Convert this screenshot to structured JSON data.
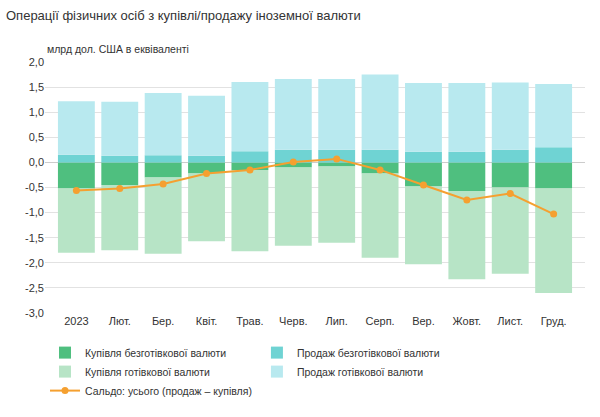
{
  "chart_data": {
    "type": "bar",
    "stacked": true,
    "title": "Операції фізичних осіб з купівлі/продажу іноземної валюти",
    "ylabel": "млрд дол. США в еквіваленті",
    "categories": [
      "2023",
      "Лют.",
      "Бер.",
      "Квіт.",
      "Трав.",
      "Черв.",
      "Лип.",
      "Серп.",
      "Вер.",
      "Жовт.",
      "Лист.",
      "Груд."
    ],
    "series": [
      {
        "name": "Купівля безготівкової валюти",
        "type": "bar",
        "color": "#4fbf7f",
        "values": [
          -0.52,
          -0.45,
          -0.3,
          -0.22,
          -0.15,
          -0.1,
          -0.08,
          -0.22,
          -0.48,
          -0.57,
          -0.5,
          -0.52
        ]
      },
      {
        "name": "Продаж безготівкової валюти",
        "type": "bar",
        "color": "#6fd3d3",
        "values": [
          0.15,
          0.13,
          0.14,
          0.13,
          0.22,
          0.25,
          0.25,
          0.25,
          0.21,
          0.21,
          0.25,
          0.3
        ]
      },
      {
        "name": "Купівля готівкової валюти",
        "type": "bar",
        "color": "#b7e4c6",
        "values": [
          -1.28,
          -1.3,
          -1.52,
          -1.35,
          -1.62,
          -1.56,
          -1.52,
          -1.68,
          -1.55,
          -1.76,
          -1.72,
          -2.08
        ]
      },
      {
        "name": "Продаж готівкової валюти",
        "type": "bar",
        "color": "#b8e9ef",
        "values": [
          1.07,
          1.08,
          1.24,
          1.2,
          1.38,
          1.41,
          1.41,
          1.5,
          1.37,
          1.37,
          1.34,
          1.26
        ]
      },
      {
        "name": "Сальдо: усього (продаж – купівля)",
        "type": "line",
        "color": "#f5a030",
        "marker": "circle",
        "values": [
          -0.56,
          -0.52,
          -0.43,
          -0.22,
          -0.15,
          0.01,
          0.07,
          -0.15,
          -0.45,
          -0.75,
          -0.62,
          -1.03
        ]
      }
    ],
    "ylim": [
      -3.0,
      2.0
    ],
    "yticks": [
      {
        "value": -3.0,
        "label": "-3,0"
      },
      {
        "value": -2.5,
        "label": "-2,5"
      },
      {
        "value": -2.0,
        "label": "-2,0"
      },
      {
        "value": -1.5,
        "label": "-1,5"
      },
      {
        "value": -1.0,
        "label": "-1,0"
      },
      {
        "value": -0.5,
        "label": "-0,5"
      },
      {
        "value": 0.0,
        "label": "0,0"
      },
      {
        "value": 0.5,
        "label": "0,5"
      },
      {
        "value": 1.0,
        "label": "1,0"
      },
      {
        "value": 1.5,
        "label": "1,5"
      },
      {
        "value": 2.0,
        "label": "2,0"
      }
    ],
    "grid": true,
    "legend": "bottom"
  }
}
